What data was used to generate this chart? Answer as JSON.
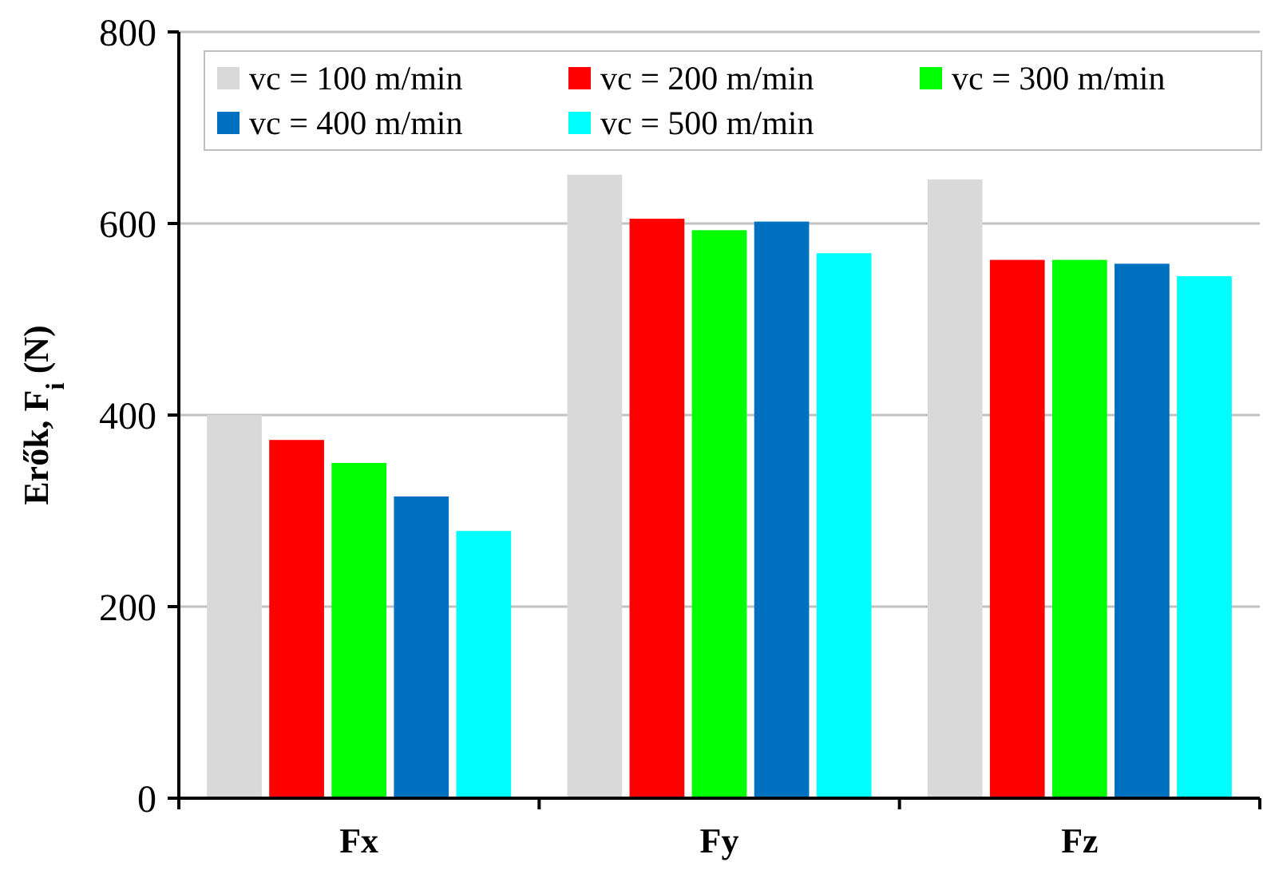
{
  "chart_data": {
    "type": "bar",
    "ylabel": "Erők, F$_{i}$ (N)",
    "categories": [
      "Fx",
      "Fy",
      "Fz"
    ],
    "series": [
      {
        "name": "vc = 100 m/min",
        "color": "#d9d9d9",
        "values": [
          400,
          651,
          646
        ]
      },
      {
        "name": "vc = 200 m/min",
        "color": "#ff0000",
        "values": [
          374,
          605,
          562
        ]
      },
      {
        "name": "vc = 300 m/min",
        "color": "#00ff00",
        "values": [
          350,
          593,
          562
        ]
      },
      {
        "name": "vc = 400 m/min",
        "color": "#0070c0",
        "values": [
          315,
          602,
          558
        ]
      },
      {
        "name": "vc = 500 m/min",
        "color": "#00ffff",
        "values": [
          279,
          569,
          545
        ]
      }
    ],
    "ylim": [
      0,
      800
    ],
    "yticks": [
      0,
      200,
      400,
      600,
      800
    ],
    "grid": "y",
    "legend": "top"
  }
}
